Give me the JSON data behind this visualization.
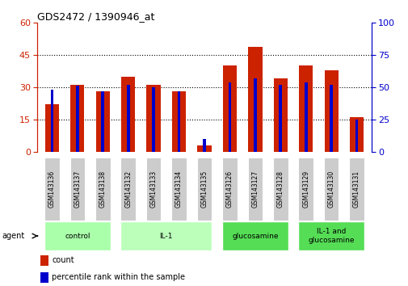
{
  "title": "GDS2472 / 1390946_at",
  "samples": [
    "GSM143136",
    "GSM143137",
    "GSM143138",
    "GSM143132",
    "GSM143133",
    "GSM143134",
    "GSM143135",
    "GSM143126",
    "GSM143127",
    "GSM143128",
    "GSM143129",
    "GSM143130",
    "GSM143131"
  ],
  "count_values": [
    22,
    31,
    28,
    35,
    31,
    28,
    3,
    40,
    49,
    34,
    40,
    38,
    16
  ],
  "percentile_values": [
    48,
    51,
    47,
    52,
    50,
    47,
    10,
    54,
    57,
    52,
    54,
    52,
    25
  ],
  "group_defs": [
    {
      "label": "control",
      "indices": [
        0,
        1,
        2
      ],
      "color": "#AAFFAA"
    },
    {
      "label": "IL-1",
      "indices": [
        3,
        4,
        5,
        6
      ],
      "color": "#BBFFBB"
    },
    {
      "label": "glucosamine",
      "indices": [
        7,
        8,
        9
      ],
      "color": "#55DD55"
    },
    {
      "label": "IL-1 and\nglucosamine",
      "indices": [
        10,
        11,
        12
      ],
      "color": "#55DD55"
    }
  ],
  "ylim_left": [
    0,
    60
  ],
  "ylim_right": [
    0,
    100
  ],
  "yticks_left": [
    0,
    15,
    30,
    45,
    60
  ],
  "yticks_right": [
    0,
    25,
    50,
    75,
    100
  ],
  "bar_color_red": "#CC2200",
  "bar_color_blue": "#0000CC",
  "bg_color": "#FFFFFF",
  "xlabel_color": "#CC2200",
  "ylabel_right_color": "#0000CC",
  "sample_box_color": "#CCCCCC",
  "grid_dotted_color": "black"
}
